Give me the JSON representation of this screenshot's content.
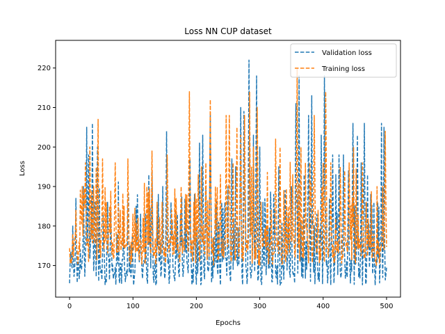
{
  "chart_data": {
    "type": "line",
    "title": "Loss NN CUP dataset",
    "xlabel": "Epochs",
    "ylabel": "Loss",
    "xlim": [
      -22,
      522
    ],
    "ylim": [
      162,
      227
    ],
    "xticks": [
      0,
      100,
      200,
      300,
      400,
      500
    ],
    "yticks": [
      170,
      180,
      190,
      200,
      210,
      220
    ],
    "grid": false,
    "legend_position": "top-right",
    "x": {
      "start": 0,
      "end": 500,
      "step": 1
    },
    "series": [
      {
        "name": "Validation loss",
        "color": "#1f77b4",
        "line_style": "dashed",
        "baseline_range": [
          165,
          172
        ],
        "peaks": [
          [
            5,
            180
          ],
          [
            10,
            187
          ],
          [
            17,
            174
          ],
          [
            22,
            190
          ],
          [
            27,
            205
          ],
          [
            30,
            198
          ],
          [
            36,
            206
          ],
          [
            40,
            186
          ],
          [
            44,
            200
          ],
          [
            53,
            183
          ],
          [
            60,
            186
          ],
          [
            65,
            184
          ],
          [
            75,
            178
          ],
          [
            85,
            182
          ],
          [
            95,
            175
          ],
          [
            105,
            185
          ],
          [
            112,
            183
          ],
          [
            120,
            183
          ],
          [
            125,
            193
          ],
          [
            130,
            194
          ],
          [
            140,
            188
          ],
          [
            147,
            190
          ],
          [
            153,
            204
          ],
          [
            160,
            186
          ],
          [
            170,
            183
          ],
          [
            175,
            183
          ],
          [
            182,
            187
          ],
          [
            190,
            197
          ],
          [
            197,
            188
          ],
          [
            205,
            201
          ],
          [
            210,
            203
          ],
          [
            215,
            190
          ],
          [
            222,
            208
          ],
          [
            230,
            185
          ],
          [
            240,
            186
          ],
          [
            245,
            186
          ],
          [
            250,
            190
          ],
          [
            256,
            197
          ],
          [
            262,
            195
          ],
          [
            270,
            210
          ],
          [
            275,
            209
          ],
          [
            283,
            222
          ],
          [
            290,
            203
          ],
          [
            295,
            218
          ],
          [
            300,
            200
          ],
          [
            305,
            186
          ],
          [
            312,
            180
          ],
          [
            322,
            188
          ],
          [
            330,
            195
          ],
          [
            340,
            189
          ],
          [
            345,
            183
          ],
          [
            350,
            190
          ],
          [
            357,
            211
          ],
          [
            362,
            218
          ],
          [
            370,
            193
          ],
          [
            377,
            208
          ],
          [
            382,
            213
          ],
          [
            390,
            183
          ],
          [
            397,
            203
          ],
          [
            402,
            218
          ],
          [
            410,
            187
          ],
          [
            415,
            198
          ],
          [
            420,
            193
          ],
          [
            425,
            198
          ],
          [
            432,
            198
          ],
          [
            440,
            194
          ],
          [
            447,
            206
          ],
          [
            454,
            203
          ],
          [
            460,
            196
          ],
          [
            465,
            206
          ],
          [
            470,
            193
          ],
          [
            475,
            188
          ],
          [
            480,
            186
          ],
          [
            486,
            186
          ],
          [
            492,
            206
          ],
          [
            496,
            205
          ]
        ]
      },
      {
        "name": "Training loss",
        "color": "#ff7f0e",
        "line_style": "dashed",
        "baseline_range": [
          170,
          177
        ],
        "peaks": [
          [
            5,
            178
          ],
          [
            10,
            184
          ],
          [
            15,
            176
          ],
          [
            20,
            190
          ],
          [
            25,
            196
          ],
          [
            32,
            200
          ],
          [
            38,
            190
          ],
          [
            45,
            207
          ],
          [
            52,
            197
          ],
          [
            58,
            186
          ],
          [
            63,
            185
          ],
          [
            72,
            196
          ],
          [
            80,
            184
          ],
          [
            86,
            185
          ],
          [
            92,
            197
          ],
          [
            100,
            183
          ],
          [
            108,
            182
          ],
          [
            116,
            182
          ],
          [
            122,
            190
          ],
          [
            130,
            199
          ],
          [
            138,
            186
          ],
          [
            146,
            186
          ],
          [
            154,
            198
          ],
          [
            161,
            184
          ],
          [
            168,
            187
          ],
          [
            176,
            190
          ],
          [
            183,
            188
          ],
          [
            189,
            214
          ],
          [
            196,
            186
          ],
          [
            203,
            193
          ],
          [
            208,
            195
          ],
          [
            215,
            196
          ],
          [
            222,
            212
          ],
          [
            230,
            190
          ],
          [
            238,
            193
          ],
          [
            247,
            208
          ],
          [
            252,
            208
          ],
          [
            258,
            196
          ],
          [
            264,
            205
          ],
          [
            270,
            203
          ],
          [
            276,
            208
          ],
          [
            284,
            214
          ],
          [
            290,
            200
          ],
          [
            296,
            210
          ],
          [
            302,
            186
          ],
          [
            310,
            180
          ],
          [
            318,
            184
          ],
          [
            325,
            202
          ],
          [
            332,
            200
          ],
          [
            338,
            189
          ],
          [
            345,
            185
          ],
          [
            352,
            193
          ],
          [
            359,
            220
          ],
          [
            365,
            200
          ],
          [
            372,
            196
          ],
          [
            379,
            196
          ],
          [
            386,
            208
          ],
          [
            392,
            184
          ],
          [
            398,
            190
          ],
          [
            404,
            214
          ],
          [
            412,
            196
          ],
          [
            420,
            182
          ],
          [
            427,
            195
          ],
          [
            434,
            194
          ],
          [
            441,
            196
          ],
          [
            448,
            200
          ],
          [
            455,
            183
          ],
          [
            462,
            196
          ],
          [
            468,
            186
          ],
          [
            474,
            178
          ],
          [
            480,
            178
          ],
          [
            487,
            176
          ],
          [
            494,
            190
          ],
          [
            498,
            204
          ]
        ]
      }
    ]
  }
}
